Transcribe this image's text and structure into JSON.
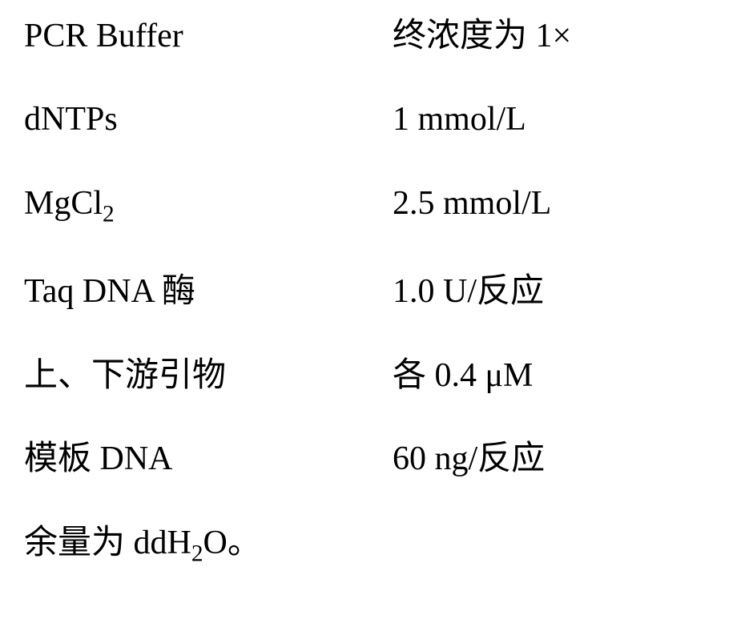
{
  "rows": [
    {
      "left": "PCR Buffer",
      "right": "终浓度为 1×"
    },
    {
      "left": "dNTPs",
      "right": "1 mmol/L"
    },
    {
      "left": "MgCl",
      "left_sub": "2",
      "right": "2.5 mmol/L"
    },
    {
      "left": "Taq DNA 酶",
      "right": "1.0 U/反应"
    },
    {
      "left": "上、下游引物",
      "right": "各 0.4 μM"
    },
    {
      "left": "模板 DNA",
      "right": "60 ng/反应"
    }
  ],
  "footer_pre": "余量为 ddH",
  "footer_sub": "2",
  "footer_post": "O。"
}
